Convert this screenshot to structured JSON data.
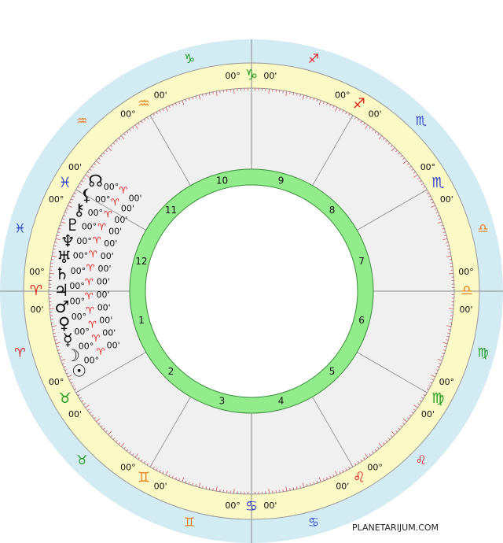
{
  "outer_signs": [
    "♈",
    "♉",
    "♊",
    "♋",
    "♌",
    "♍",
    "♎",
    "♏",
    "♐",
    "♑",
    "♒",
    "♓"
  ],
  "cusps": [
    {
      "sign": "♈",
      "deg": "00°",
      "min": "00'",
      "color": "#e41b1b"
    },
    {
      "sign": "♉",
      "deg": "00°",
      "min": "00'",
      "color": "#1a9a1a"
    },
    {
      "sign": "♊",
      "deg": "00°",
      "min": "00'",
      "color": "#e8821e"
    },
    {
      "sign": "♋",
      "deg": "00°",
      "min": "00'",
      "color": "#2a3fcc"
    },
    {
      "sign": "♌",
      "deg": "00°",
      "min": "00'",
      "color": "#e41b1b"
    },
    {
      "sign": "♍",
      "deg": "00°",
      "min": "00'",
      "color": "#1a9a1a"
    },
    {
      "sign": "♎",
      "deg": "00°",
      "min": "00'",
      "color": "#e8821e"
    },
    {
      "sign": "♏",
      "deg": "00°",
      "min": "00'",
      "color": "#2a3fcc"
    },
    {
      "sign": "♐",
      "deg": "00°",
      "min": "00'",
      "color": "#e41b1b"
    },
    {
      "sign": "♑",
      "deg": "00°",
      "min": "00'",
      "color": "#1a9a1a"
    },
    {
      "sign": "♒",
      "deg": "00°",
      "min": "00'",
      "color": "#e8821e"
    },
    {
      "sign": "♓",
      "deg": "00°",
      "min": "00'",
      "color": "#2a3fcc"
    }
  ],
  "houses": [
    1,
    2,
    3,
    4,
    5,
    6,
    7,
    8,
    9,
    10,
    11,
    12
  ],
  "planets": [
    {
      "symbol": "☊",
      "deg": "00°",
      "sign": "♈",
      "min": "00'"
    },
    {
      "symbol": "⚸",
      "deg": "00°",
      "sign": "♈",
      "min": "00'"
    },
    {
      "symbol": "⚷",
      "deg": "00°",
      "sign": "♈",
      "min": "00'"
    },
    {
      "symbol": "♇",
      "deg": "00°",
      "sign": "♈",
      "min": "00'"
    },
    {
      "symbol": "♆",
      "deg": "00°",
      "sign": "♈",
      "min": "00'"
    },
    {
      "symbol": "♅",
      "deg": "00°",
      "sign": "♈",
      "min": "00'"
    },
    {
      "symbol": "♄",
      "deg": "00°",
      "sign": "♈",
      "min": "00'"
    },
    {
      "symbol": "♃",
      "deg": "00°",
      "sign": "♈",
      "min": "00'"
    },
    {
      "symbol": "♂",
      "deg": "00°",
      "sign": "♈",
      "min": "00'"
    },
    {
      "symbol": "♀",
      "deg": "00°",
      "sign": "♈",
      "min": "00'"
    },
    {
      "symbol": "☿",
      "deg": "00°",
      "sign": "♈",
      "min": "00'"
    },
    {
      "symbol": "☽",
      "deg": "00°",
      "sign": "♈",
      "min": "00'"
    },
    {
      "symbol": "☉",
      "deg": "00°",
      "sign": "♈",
      "min": "00'"
    }
  ],
  "watermark": "PLANETARIJUM.COM"
}
